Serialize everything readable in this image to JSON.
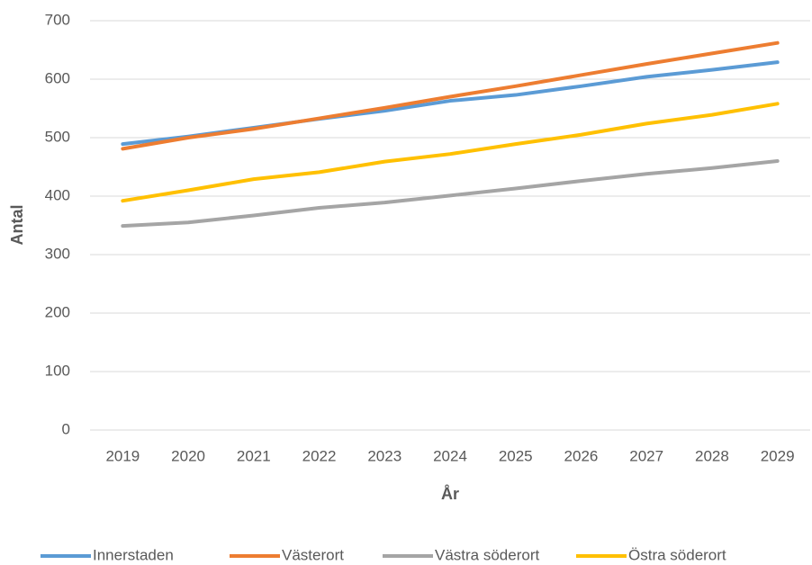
{
  "chart_data": {
    "type": "line",
    "x_label": "År",
    "y_label": "Antal",
    "categories": [
      "2019",
      "2020",
      "2021",
      "2022",
      "2023",
      "2024",
      "2025",
      "2026",
      "2027",
      "2028",
      "2029"
    ],
    "series": [
      {
        "name": "Innerstaden",
        "color": "#5b9bd5",
        "values": [
          489,
          502,
          517,
          532,
          546,
          563,
          573,
          588,
          604,
          616,
          629
        ]
      },
      {
        "name": "Västerort",
        "color": "#ed7d31",
        "values": [
          481,
          500,
          515,
          533,
          551,
          570,
          588,
          607,
          626,
          644,
          662
        ]
      },
      {
        "name": "Västra söderort",
        "color": "#a5a5a5",
        "values": [
          349,
          355,
          367,
          380,
          389,
          401,
          413,
          426,
          438,
          448,
          460
        ]
      },
      {
        "name": "Östra söderort",
        "color": "#ffc000",
        "values": [
          392,
          410,
          429,
          441,
          459,
          472,
          489,
          505,
          524,
          539,
          558
        ]
      }
    ],
    "ylim": [
      0,
      700
    ],
    "yticks": [
      0,
      100,
      200,
      300,
      400,
      500,
      600,
      700
    ],
    "grid": true,
    "legend": "bottom"
  }
}
